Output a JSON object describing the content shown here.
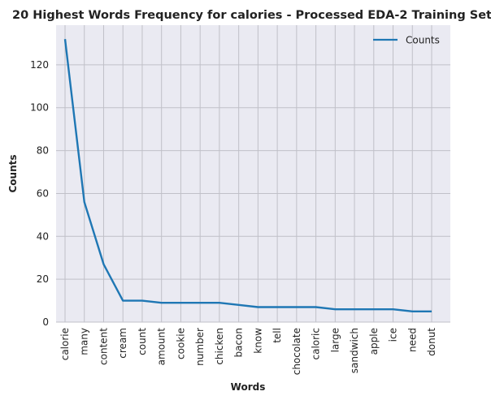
{
  "chart_data": {
    "type": "line",
    "title": "20 Highest Words Frequency for calories - Processed EDA-2 Training Set",
    "xlabel": "Words",
    "ylabel": "Counts",
    "categories": [
      "calorie",
      "many",
      "content",
      "cream",
      "count",
      "amount",
      "cookie",
      "number",
      "chicken",
      "bacon",
      "know",
      "tell",
      "chocolate",
      "caloric",
      "large",
      "sandwich",
      "apple",
      "ice",
      "need",
      "donut"
    ],
    "series": [
      {
        "name": "Counts",
        "values": [
          132,
          56,
          27,
          10,
          10,
          9,
          9,
          9,
          9,
          8,
          7,
          7,
          7,
          7,
          6,
          6,
          6,
          6,
          5,
          5
        ]
      }
    ],
    "ylim": [
      0,
      138.5
    ],
    "yticks": [
      0,
      20,
      40,
      60,
      80,
      100,
      120
    ],
    "grid": true,
    "legend": "top-right",
    "colors": {
      "line": "#1f77b4",
      "plot_background": "#eaeaf2",
      "grid": "#c0c0c8"
    }
  }
}
